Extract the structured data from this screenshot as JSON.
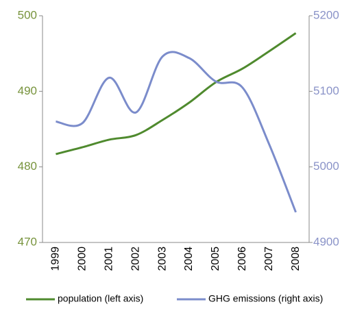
{
  "chart_data": {
    "type": "line",
    "categories": [
      "1999",
      "2000",
      "2001",
      "2002",
      "2003",
      "2004",
      "2005",
      "2006",
      "2007",
      "2008"
    ],
    "series": [
      {
        "name": "population (left axis)",
        "color": "#4f8a2e",
        "values": [
          481.7,
          482.6,
          483.6,
          484.2,
          486.2,
          488.5,
          491.2,
          493.0,
          495.3,
          497.7
        ]
      },
      {
        "name": "GHG emissions (right axis)",
        "color": "#7b8ccb",
        "axis": "y2",
        "values": [
          5060,
          5058,
          5118,
          5072,
          5146,
          5144,
          5113,
          5105,
          5030,
          4940
        ]
      }
    ],
    "ylim": [
      470,
      500
    ],
    "yticks": [
      470,
      480,
      490,
      500
    ],
    "ycolor": "#77933c",
    "y2lim": [
      4900,
      5200
    ],
    "y2ticks": [
      4900,
      5000,
      5100,
      5200
    ],
    "y2color": "#8a93c8",
    "legend": "bottom",
    "grid": false
  }
}
